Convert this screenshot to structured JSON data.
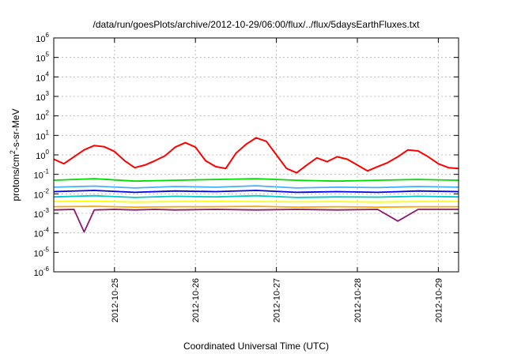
{
  "chart_data": {
    "type": "line",
    "title": "/data/run/goesPlots/archive/2012-10-29/06:00/flux/../flux/5daysEarthFluxes.txt",
    "xlabel": "Coordinated Universal Time (UTC)",
    "ylabel": "protons/cm²-s-sr-MeV",
    "ylabel_parts": [
      "protons/cm",
      "2",
      "-s-sr-MeV"
    ],
    "y_scale": "log",
    "ylim": [
      1e-06,
      1000000.0
    ],
    "y_ticks": [
      {
        "base": "10",
        "exp": "-6"
      },
      {
        "base": "10",
        "exp": "-5"
      },
      {
        "base": "10",
        "exp": "-4"
      },
      {
        "base": "10",
        "exp": "-3"
      },
      {
        "base": "10",
        "exp": "-2"
      },
      {
        "base": "10",
        "exp": "-1"
      },
      {
        "base": "10",
        "exp": "0"
      },
      {
        "base": "10",
        "exp": "1"
      },
      {
        "base": "10",
        "exp": "2"
      },
      {
        "base": "10",
        "exp": "3"
      },
      {
        "base": "10",
        "exp": "4"
      },
      {
        "base": "10",
        "exp": "5"
      },
      {
        "base": "10",
        "exp": "6"
      }
    ],
    "xlim": [
      "2012-10-24 06:00",
      "2012-10-29 06:00"
    ],
    "x_ticks": [
      "2012-10-25",
      "2012-10-26",
      "2012-10-27",
      "2012-10-28",
      "2012-10-29"
    ],
    "grid": true,
    "series": [
      {
        "color": "#ff0000",
        "x": [
          "2012-10-24 06:00",
          "2012-10-24 09:00",
          "2012-10-24 12:00",
          "2012-10-24 15:00",
          "2012-10-24 18:00",
          "2012-10-24 21:00",
          "2012-10-25 00:00",
          "2012-10-25 03:00",
          "2012-10-25 06:00",
          "2012-10-25 09:00",
          "2012-10-25 12:00",
          "2012-10-25 15:00",
          "2012-10-25 18:00",
          "2012-10-25 21:00",
          "2012-10-26 00:00",
          "2012-10-26 03:00",
          "2012-10-26 06:00",
          "2012-10-26 09:00",
          "2012-10-26 12:00",
          "2012-10-26 15:00",
          "2012-10-26 18:00",
          "2012-10-26 21:00",
          "2012-10-27 00:00",
          "2012-10-27 03:00",
          "2012-10-27 06:00",
          "2012-10-27 09:00",
          "2012-10-27 12:00",
          "2012-10-27 15:00",
          "2012-10-27 18:00",
          "2012-10-27 21:00",
          "2012-10-28 00:00",
          "2012-10-28 03:00",
          "2012-10-28 06:00",
          "2012-10-28 09:00",
          "2012-10-28 12:00",
          "2012-10-28 15:00",
          "2012-10-28 18:00",
          "2012-10-28 21:00",
          "2012-10-29 00:00",
          "2012-10-29 03:00",
          "2012-10-29 06:00"
        ],
        "y": [
          0.6,
          0.35,
          0.8,
          1.8,
          3.0,
          2.6,
          1.5,
          0.5,
          0.22,
          0.3,
          0.5,
          0.9,
          2.5,
          4.2,
          2.5,
          0.5,
          0.25,
          0.2,
          1.2,
          3.5,
          7.5,
          5.0,
          1.0,
          0.2,
          0.12,
          0.3,
          0.7,
          0.45,
          0.8,
          0.6,
          0.3,
          0.15,
          0.25,
          0.4,
          0.8,
          1.8,
          1.6,
          0.8,
          0.35,
          0.22,
          0.2
        ]
      },
      {
        "color": "#00dd00",
        "x": [
          "2012-10-24 06:00",
          "2012-10-24 18:00",
          "2012-10-25 06:00",
          "2012-10-25 18:00",
          "2012-10-26 06:00",
          "2012-10-26 18:00",
          "2012-10-27 06:00",
          "2012-10-27 18:00",
          "2012-10-28 06:00",
          "2012-10-28 18:00",
          "2012-10-29 06:00"
        ],
        "y": [
          0.05,
          0.06,
          0.045,
          0.05,
          0.055,
          0.06,
          0.05,
          0.045,
          0.05,
          0.055,
          0.05
        ]
      },
      {
        "color": "#40b0ff",
        "x": [
          "2012-10-24 06:00",
          "2012-10-24 18:00",
          "2012-10-25 06:00",
          "2012-10-25 18:00",
          "2012-10-26 06:00",
          "2012-10-26 18:00",
          "2012-10-27 06:00",
          "2012-10-27 18:00",
          "2012-10-28 06:00",
          "2012-10-28 18:00",
          "2012-10-29 06:00"
        ],
        "y": [
          0.022,
          0.025,
          0.02,
          0.024,
          0.022,
          0.026,
          0.02,
          0.022,
          0.021,
          0.024,
          0.022
        ]
      },
      {
        "color": "#0000ee",
        "x": [
          "2012-10-24 06:00",
          "2012-10-24 18:00",
          "2012-10-25 06:00",
          "2012-10-25 18:00",
          "2012-10-26 06:00",
          "2012-10-26 18:00",
          "2012-10-27 06:00",
          "2012-10-27 18:00",
          "2012-10-28 06:00",
          "2012-10-28 18:00",
          "2012-10-29 06:00"
        ],
        "y": [
          0.013,
          0.015,
          0.012,
          0.014,
          0.013,
          0.015,
          0.012,
          0.013,
          0.012,
          0.014,
          0.013
        ]
      },
      {
        "color": "#00c8c8",
        "x": [
          "2012-10-24 06:00",
          "2012-10-24 18:00",
          "2012-10-25 06:00",
          "2012-10-25 18:00",
          "2012-10-26 06:00",
          "2012-10-26 18:00",
          "2012-10-27 06:00",
          "2012-10-27 18:00",
          "2012-10-28 06:00",
          "2012-10-28 18:00",
          "2012-10-29 06:00"
        ],
        "y": [
          0.007,
          0.008,
          0.0065,
          0.0075,
          0.007,
          0.008,
          0.0065,
          0.007,
          0.0068,
          0.0075,
          0.007
        ]
      },
      {
        "color": "#ffff00",
        "x": [
          "2012-10-24 06:00",
          "2012-10-24 18:00",
          "2012-10-25 06:00",
          "2012-10-25 18:00",
          "2012-10-26 06:00",
          "2012-10-26 18:00",
          "2012-10-27 06:00",
          "2012-10-27 18:00",
          "2012-10-28 06:00",
          "2012-10-28 18:00",
          "2012-10-29 06:00"
        ],
        "y": [
          0.004,
          0.0042,
          0.0038,
          0.004,
          0.0041,
          0.004,
          0.0039,
          0.004,
          0.0038,
          0.004,
          0.004
        ]
      },
      {
        "color": "#ffa500",
        "x": [
          "2012-10-24 06:00",
          "2012-10-24 18:00",
          "2012-10-25 06:00",
          "2012-10-25 18:00",
          "2012-10-26 06:00",
          "2012-10-26 18:00",
          "2012-10-27 06:00",
          "2012-10-27 18:00",
          "2012-10-28 06:00",
          "2012-10-28 18:00",
          "2012-10-29 06:00"
        ],
        "y": [
          0.0022,
          0.0023,
          0.0021,
          0.0022,
          0.0022,
          0.0023,
          0.0021,
          0.0022,
          0.0021,
          0.0022,
          0.0022
        ]
      },
      {
        "color": "#8b1a6b",
        "x": [
          "2012-10-24 06:00",
          "2012-10-24 12:00",
          "2012-10-24 15:00",
          "2012-10-24 18:00",
          "2012-10-25 00:00",
          "2012-10-25 06:00",
          "2012-10-25 12:00",
          "2012-10-25 18:00",
          "2012-10-26 06:00",
          "2012-10-26 18:00",
          "2012-10-27 06:00",
          "2012-10-27 18:00",
          "2012-10-28 06:00",
          "2012-10-28 12:00",
          "2012-10-28 18:00",
          "2012-10-29 06:00"
        ],
        "y": [
          0.0015,
          0.0016,
          0.00011,
          0.0015,
          0.0016,
          0.0015,
          0.0016,
          0.0015,
          0.0016,
          0.0015,
          0.0016,
          0.0015,
          0.0016,
          0.0004,
          0.0016,
          0.0016
        ]
      }
    ]
  }
}
